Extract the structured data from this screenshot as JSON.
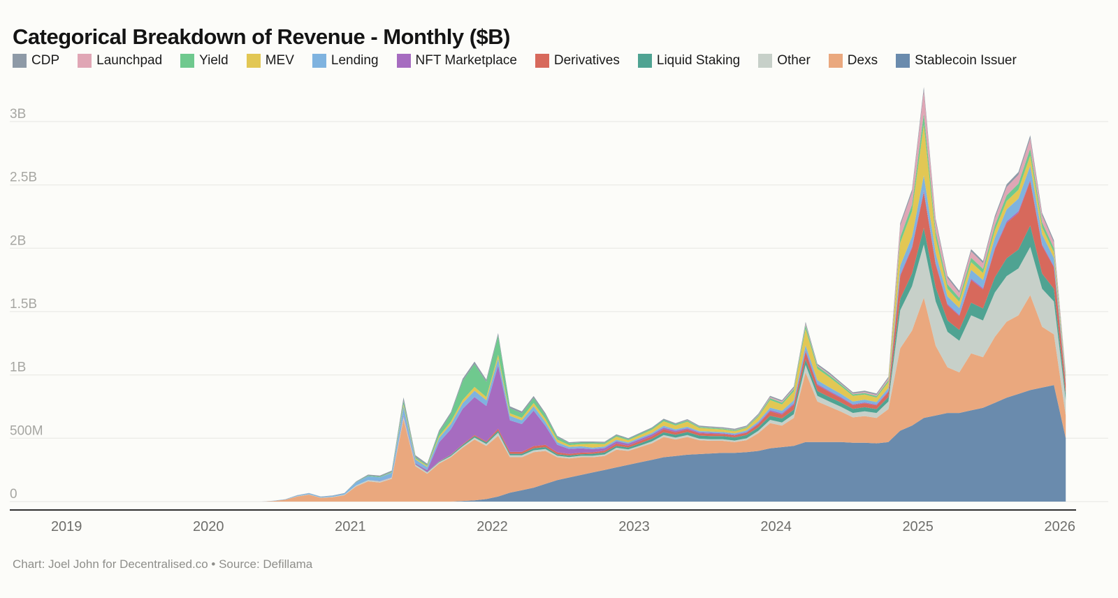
{
  "title": "Categorical Breakdown of Revenue - Monthly ($B)",
  "caption": "Chart: Joel John for Decentralised.co • Source: Defillama",
  "legend": [
    {
      "label": "CDP",
      "color": "#8e9aa7"
    },
    {
      "label": "Launchpad",
      "color": "#e0a6b5"
    },
    {
      "label": "Yield",
      "color": "#6fc98e"
    },
    {
      "label": "MEV",
      "color": "#e2c754"
    },
    {
      "label": "Lending",
      "color": "#7fb3df"
    },
    {
      "label": "NFT Marketplace",
      "color": "#a66cc0"
    },
    {
      "label": "Derivatives",
      "color": "#d7695c"
    },
    {
      "label": "Liquid Staking",
      "color": "#4fa392"
    },
    {
      "label": "Other",
      "color": "#c7d0c9"
    },
    {
      "label": "Dexs",
      "color": "#eaa87e"
    },
    {
      "label": "Stablecoin Issuer",
      "color": "#6a8bad"
    }
  ],
  "chart_data": {
    "type": "area",
    "stacked": true,
    "title": "Categorical Breakdown of Revenue - Monthly ($B)",
    "unit": "USD millions",
    "ylim": [
      0,
      3400
    ],
    "grid": true,
    "legend_position": "top",
    "y_axis": {
      "ticks": [
        {
          "value": 0,
          "label": "0"
        },
        {
          "value": 500,
          "label": "500M"
        },
        {
          "value": 1000,
          "label": "1B"
        },
        {
          "value": 1500,
          "label": "1.5B"
        },
        {
          "value": 2000,
          "label": "2B"
        },
        {
          "value": 2500,
          "label": "2.5B"
        },
        {
          "value": 3000,
          "label": "3B"
        }
      ]
    },
    "x_axis": {
      "ticks": [
        {
          "value": 2019,
          "label": "2019"
        },
        {
          "value": 2020,
          "label": "2020"
        },
        {
          "value": 2021,
          "label": "2021"
        },
        {
          "value": 2022,
          "label": "2022"
        },
        {
          "value": 2023,
          "label": "2023"
        },
        {
          "value": 2024,
          "label": "2024"
        },
        {
          "value": 2025,
          "label": "2025"
        },
        {
          "value": 2026,
          "label": "2026"
        }
      ]
    },
    "months": [
      "2020-01",
      "2020-02",
      "2020-03",
      "2020-04",
      "2020-05",
      "2020-06",
      "2020-07",
      "2020-08",
      "2020-09",
      "2020-10",
      "2020-11",
      "2020-12",
      "2021-01",
      "2021-02",
      "2021-03",
      "2021-04",
      "2021-05",
      "2021-06",
      "2021-07",
      "2021-08",
      "2021-09",
      "2021-10",
      "2021-11",
      "2021-12",
      "2022-01",
      "2022-02",
      "2022-03",
      "2022-04",
      "2022-05",
      "2022-06",
      "2022-07",
      "2022-08",
      "2022-09",
      "2022-10",
      "2022-11",
      "2022-12",
      "2023-01",
      "2023-02",
      "2023-03",
      "2023-04",
      "2023-05",
      "2023-06",
      "2023-07",
      "2023-08",
      "2023-09",
      "2023-10",
      "2023-11",
      "2023-12",
      "2024-01",
      "2024-02",
      "2024-03",
      "2024-04",
      "2024-05",
      "2024-06",
      "2024-07",
      "2024-08",
      "2024-09",
      "2024-10",
      "2024-11",
      "2024-12",
      "2025-01",
      "2025-02",
      "2025-03",
      "2025-04",
      "2025-05",
      "2025-06",
      "2025-07",
      "2025-08",
      "2025-09",
      "2025-10",
      "2025-11",
      "2025-12",
      "2026-01"
    ],
    "series": [
      {
        "name": "Stablecoin Issuer",
        "color": "#6a8bad",
        "values": [
          0,
          0,
          0,
          0,
          0,
          0,
          0,
          0,
          0,
          0,
          0,
          0,
          0,
          0,
          0,
          0,
          0,
          0,
          0,
          0,
          0,
          5,
          10,
          20,
          40,
          70,
          90,
          110,
          140,
          170,
          190,
          210,
          230,
          250,
          270,
          290,
          310,
          330,
          350,
          360,
          370,
          375,
          380,
          385,
          385,
          390,
          400,
          420,
          430,
          440,
          470,
          470,
          470,
          470,
          465,
          465,
          460,
          470,
          560,
          600,
          660,
          680,
          700,
          700,
          720,
          740,
          780,
          820,
          850,
          880,
          900,
          920,
          500
        ]
      },
      {
        "name": "Dexs",
        "color": "#eaa87e",
        "values": [
          0,
          0,
          0,
          0,
          0,
          5,
          15,
          40,
          55,
          30,
          35,
          50,
          120,
          160,
          150,
          180,
          650,
          280,
          220,
          300,
          350,
          420,
          480,
          420,
          480,
          280,
          260,
          280,
          260,
          180,
          150,
          140,
          120,
          110,
          140,
          110,
          120,
          130,
          160,
          130,
          140,
          110,
          100,
          95,
          85,
          95,
          140,
          200,
          170,
          220,
          550,
          320,
          280,
          240,
          200,
          210,
          200,
          260,
          650,
          750,
          950,
          550,
          360,
          320,
          450,
          400,
          520,
          600,
          620,
          750,
          480,
          400,
          180
        ]
      },
      {
        "name": "Other",
        "color": "#c7d0c9",
        "values": [
          0,
          0,
          0,
          0,
          0,
          0,
          0,
          3,
          3,
          2,
          3,
          5,
          8,
          10,
          10,
          10,
          20,
          12,
          10,
          10,
          10,
          12,
          15,
          15,
          25,
          15,
          15,
          15,
          15,
          12,
          12,
          12,
          12,
          12,
          15,
          12,
          12,
          15,
          15,
          15,
          15,
          12,
          12,
          12,
          12,
          14,
          18,
          25,
          25,
          30,
          60,
          45,
          40,
          38,
          35,
          38,
          40,
          60,
          300,
          350,
          420,
          350,
          280,
          250,
          300,
          290,
          350,
          360,
          370,
          380,
          300,
          260,
          120
        ]
      },
      {
        "name": "Liquid Staking",
        "color": "#4fa392",
        "values": [
          0,
          0,
          0,
          0,
          0,
          0,
          0,
          0,
          0,
          0,
          0,
          0,
          0,
          0,
          0,
          0,
          2,
          3,
          3,
          5,
          8,
          10,
          12,
          12,
          15,
          12,
          12,
          15,
          15,
          12,
          12,
          12,
          15,
          15,
          15,
          15,
          18,
          20,
          22,
          22,
          24,
          24,
          25,
          25,
          25,
          26,
          28,
          32,
          32,
          35,
          42,
          38,
          36,
          34,
          32,
          32,
          30,
          35,
          90,
          100,
          130,
          110,
          90,
          85,
          100,
          95,
          120,
          140,
          150,
          170,
          120,
          100,
          45
        ]
      },
      {
        "name": "Derivatives",
        "color": "#d7695c",
        "values": [
          0,
          0,
          0,
          0,
          0,
          0,
          0,
          0,
          0,
          0,
          0,
          0,
          0,
          0,
          0,
          0,
          0,
          0,
          0,
          2,
          3,
          5,
          8,
          8,
          15,
          15,
          15,
          18,
          18,
          15,
          12,
          12,
          12,
          15,
          18,
          15,
          18,
          20,
          25,
          20,
          20,
          18,
          18,
          16,
          15,
          18,
          25,
          35,
          30,
          40,
          60,
          45,
          40,
          35,
          30,
          32,
          30,
          40,
          180,
          200,
          280,
          180,
          120,
          110,
          180,
          150,
          220,
          280,
          290,
          350,
          220,
          170,
          80
        ]
      },
      {
        "name": "NFT Marketplace",
        "color": "#a66cc0",
        "values": [
          0,
          0,
          0,
          0,
          0,
          0,
          0,
          0,
          0,
          0,
          0,
          0,
          0,
          0,
          2,
          3,
          10,
          8,
          15,
          150,
          200,
          280,
          300,
          280,
          500,
          250,
          220,
          280,
          150,
          60,
          40,
          35,
          25,
          20,
          18,
          15,
          15,
          15,
          12,
          12,
          10,
          8,
          8,
          6,
          6,
          6,
          8,
          10,
          10,
          10,
          12,
          10,
          8,
          8,
          6,
          6,
          6,
          8,
          12,
          12,
          15,
          12,
          10,
          8,
          10,
          10,
          10,
          12,
          12,
          12,
          10,
          8,
          4
        ]
      },
      {
        "name": "Lending",
        "color": "#7fb3df",
        "values": [
          0,
          0,
          0,
          0,
          0,
          2,
          3,
          5,
          8,
          6,
          8,
          10,
          25,
          30,
          30,
          35,
          70,
          30,
          25,
          35,
          40,
          45,
          50,
          45,
          55,
          35,
          30,
          35,
          30,
          20,
          15,
          15,
          12,
          12,
          12,
          10,
          12,
          12,
          15,
          12,
          12,
          10,
          10,
          10,
          10,
          12,
          15,
          20,
          20,
          25,
          40,
          30,
          28,
          25,
          22,
          22,
          20,
          25,
          70,
          80,
          120,
          80,
          60,
          55,
          70,
          65,
          80,
          95,
          100,
          110,
          80,
          65,
          30
        ]
      },
      {
        "name": "MEV",
        "color": "#e2c754",
        "values": [
          0,
          0,
          0,
          0,
          0,
          0,
          0,
          0,
          0,
          0,
          0,
          0,
          0,
          0,
          0,
          2,
          15,
          8,
          8,
          15,
          20,
          25,
          30,
          25,
          30,
          20,
          20,
          25,
          25,
          20,
          15,
          18,
          30,
          20,
          25,
          18,
          20,
          25,
          35,
          30,
          40,
          25,
          22,
          20,
          18,
          20,
          35,
          60,
          50,
          70,
          130,
          90,
          80,
          60,
          45,
          40,
          35,
          45,
          180,
          200,
          400,
          120,
          60,
          50,
          60,
          55,
          60,
          65,
          70,
          80,
          55,
          45,
          20
        ]
      },
      {
        "name": "Yield",
        "color": "#6fc98e",
        "values": [
          0,
          0,
          0,
          0,
          0,
          0,
          0,
          0,
          0,
          0,
          0,
          0,
          2,
          5,
          5,
          5,
          25,
          10,
          8,
          30,
          60,
          150,
          180,
          120,
          150,
          40,
          35,
          40,
          30,
          20,
          15,
          12,
          10,
          10,
          10,
          8,
          10,
          10,
          12,
          10,
          10,
          8,
          8,
          8,
          8,
          8,
          10,
          15,
          15,
          18,
          30,
          20,
          18,
          15,
          12,
          12,
          12,
          15,
          45,
          50,
          90,
          50,
          35,
          30,
          35,
          32,
          40,
          45,
          48,
          55,
          40,
          32,
          15
        ]
      },
      {
        "name": "Launchpad",
        "color": "#e0a6b5",
        "values": [
          0,
          0,
          0,
          0,
          0,
          0,
          0,
          0,
          0,
          0,
          0,
          0,
          0,
          0,
          0,
          0,
          0,
          0,
          0,
          0,
          0,
          0,
          0,
          0,
          0,
          0,
          0,
          0,
          0,
          0,
          0,
          0,
          0,
          0,
          0,
          0,
          0,
          0,
          0,
          0,
          2,
          2,
          2,
          2,
          3,
          3,
          5,
          8,
          8,
          8,
          10,
          8,
          8,
          6,
          6,
          8,
          10,
          15,
          90,
          100,
          180,
          80,
          50,
          40,
          50,
          45,
          55,
          65,
          70,
          80,
          55,
          45,
          20
        ]
      },
      {
        "name": "CDP",
        "color": "#8e9aa7",
        "values": [
          0,
          0,
          0,
          0,
          0,
          0,
          1,
          2,
          2,
          2,
          2,
          3,
          5,
          8,
          8,
          10,
          30,
          15,
          10,
          15,
          15,
          18,
          20,
          18,
          20,
          15,
          15,
          15,
          15,
          10,
          8,
          8,
          8,
          8,
          8,
          8,
          8,
          8,
          8,
          8,
          8,
          8,
          8,
          8,
          8,
          8,
          9,
          10,
          10,
          12,
          15,
          12,
          12,
          10,
          10,
          10,
          10,
          12,
          20,
          22,
          28,
          20,
          18,
          16,
          18,
          17,
          20,
          22,
          22,
          25,
          20,
          18,
          8
        ]
      }
    ]
  }
}
